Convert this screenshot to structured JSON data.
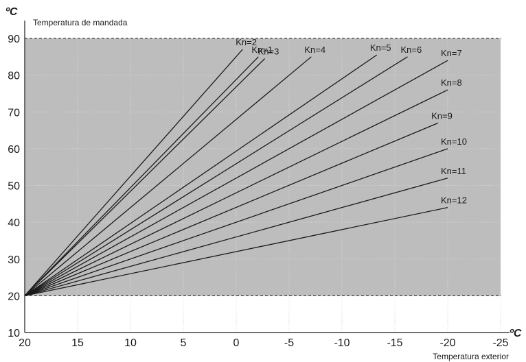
{
  "chart_data": {
    "type": "line",
    "title": "",
    "xlabel": "Temperatura exterior",
    "ylabel": "Temperatura de mandada",
    "x_unit": "ºC",
    "y_unit": "ºC",
    "xlim": [
      20,
      -25
    ],
    "ylim": [
      10,
      90
    ],
    "x_ticks": [
      20,
      15,
      10,
      5,
      0,
      -5,
      -10,
      -15,
      -20,
      -25
    ],
    "y_ticks": [
      10,
      20,
      30,
      40,
      50,
      60,
      70,
      80,
      90
    ],
    "grid": true,
    "shaded_band": [
      20,
      90
    ],
    "series": [
      {
        "name": "Kn=1",
        "x": [
          20,
          -2.1
        ],
        "y": [
          20,
          85
        ]
      },
      {
        "name": "Kn=2",
        "x": [
          20,
          -0.6
        ],
        "y": [
          20,
          87
        ]
      },
      {
        "name": "Kn=3",
        "x": [
          20,
          -2.7
        ],
        "y": [
          20,
          84.5
        ]
      },
      {
        "name": "Kn=4",
        "x": [
          20,
          -7.1
        ],
        "y": [
          20,
          85
        ]
      },
      {
        "name": "Kn=5",
        "x": [
          20,
          -13.3
        ],
        "y": [
          20,
          85.5
        ]
      },
      {
        "name": "Kn=6",
        "x": [
          20,
          -16.2
        ],
        "y": [
          20,
          85
        ]
      },
      {
        "name": "Kn=7",
        "x": [
          20,
          -20
        ],
        "y": [
          20,
          84
        ]
      },
      {
        "name": "Kn=8",
        "x": [
          20,
          -20
        ],
        "y": [
          20,
          76
        ]
      },
      {
        "name": "Kn=9",
        "x": [
          20,
          -19.1
        ],
        "y": [
          20,
          67
        ]
      },
      {
        "name": "Kn=10",
        "x": [
          20,
          -20
        ],
        "y": [
          20,
          60
        ]
      },
      {
        "name": "Kn=11",
        "x": [
          20,
          -20
        ],
        "y": [
          20,
          52
        ]
      },
      {
        "name": "Kn=12",
        "x": [
          20,
          -20
        ],
        "y": [
          20,
          44
        ]
      }
    ]
  }
}
